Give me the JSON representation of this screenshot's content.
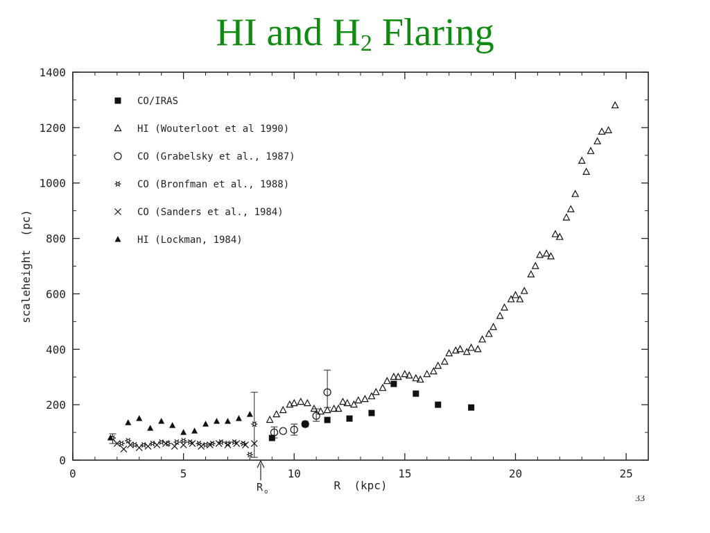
{
  "slide": {
    "title_main": "HI and H",
    "title_sub": "2",
    "title_rest": " Flaring",
    "page_number": "33"
  },
  "chart_data": {
    "type": "scatter",
    "xlabel": "R  (kpc)",
    "ylabel": "scaleheight  (pc)",
    "xlim": [
      0,
      26
    ],
    "ylim": [
      0,
      1400
    ],
    "xticks": [
      0,
      5,
      10,
      15,
      20,
      25
    ],
    "yticks": [
      0,
      200,
      400,
      600,
      800,
      1000,
      1200,
      1400
    ],
    "grid": false,
    "legend_position": "top-left",
    "annotation": {
      "label": "R",
      "subscript": "o",
      "x": 8.5
    },
    "series": [
      {
        "name": "CO/IRAS",
        "marker": "filled-square",
        "points": [
          [
            9.0,
            80
          ],
          [
            10.5,
            130
          ],
          [
            11.5,
            145
          ],
          [
            12.5,
            150
          ],
          [
            13.5,
            170
          ],
          [
            14.5,
            275
          ],
          [
            15.5,
            240
          ],
          [
            16.5,
            200
          ],
          [
            18.0,
            190
          ]
        ]
      },
      {
        "name": "HI (Wouterloot et al 1990)",
        "marker": "open-triangle",
        "points": [
          [
            8.9,
            145
          ],
          [
            9.2,
            165
          ],
          [
            9.5,
            180
          ],
          [
            9.8,
            200
          ],
          [
            10.0,
            205
          ],
          [
            10.3,
            210
          ],
          [
            10.6,
            205
          ],
          [
            10.9,
            185
          ],
          [
            11.2,
            175
          ],
          [
            11.5,
            180
          ],
          [
            11.8,
            185
          ],
          [
            12.0,
            185
          ],
          [
            12.2,
            210
          ],
          [
            12.4,
            205
          ],
          [
            12.7,
            200
          ],
          [
            12.9,
            215
          ],
          [
            13.2,
            220
          ],
          [
            13.5,
            230
          ],
          [
            13.7,
            245
          ],
          [
            14.0,
            260
          ],
          [
            14.2,
            285
          ],
          [
            14.5,
            300
          ],
          [
            14.7,
            300
          ],
          [
            15.0,
            310
          ],
          [
            15.2,
            305
          ],
          [
            15.5,
            295
          ],
          [
            15.7,
            290
          ],
          [
            16.0,
            310
          ],
          [
            16.3,
            320
          ],
          [
            16.5,
            340
          ],
          [
            16.8,
            355
          ],
          [
            17.0,
            385
          ],
          [
            17.3,
            395
          ],
          [
            17.5,
            400
          ],
          [
            17.8,
            390
          ],
          [
            18.0,
            405
          ],
          [
            18.3,
            400
          ],
          [
            18.5,
            435
          ],
          [
            18.8,
            455
          ],
          [
            19.0,
            480
          ],
          [
            19.3,
            520
          ],
          [
            19.5,
            550
          ],
          [
            19.8,
            580
          ],
          [
            20.0,
            595
          ],
          [
            20.2,
            580
          ],
          [
            20.4,
            610
          ],
          [
            20.7,
            670
          ],
          [
            20.9,
            700
          ],
          [
            21.1,
            740
          ],
          [
            21.4,
            745
          ],
          [
            21.6,
            735
          ],
          [
            21.8,
            815
          ],
          [
            22.0,
            805
          ],
          [
            22.3,
            875
          ],
          [
            22.5,
            905
          ],
          [
            22.7,
            960
          ],
          [
            23.0,
            1080
          ],
          [
            23.2,
            1040
          ],
          [
            23.4,
            1115
          ],
          [
            23.7,
            1150
          ],
          [
            23.9,
            1185
          ],
          [
            24.2,
            1190
          ],
          [
            24.5,
            1280
          ]
        ]
      },
      {
        "name": "CO (Grabelsky et al., 1987)",
        "marker": "open-circle",
        "points": [
          [
            9.1,
            100
          ],
          [
            9.5,
            105
          ],
          [
            10.0,
            110
          ],
          [
            10.5,
            130
          ],
          [
            11.0,
            160
          ],
          [
            11.5,
            245
          ]
        ]
      },
      {
        "name": "CO (Bronfman et al., 1988)",
        "marker": "star",
        "points": [
          [
            1.8,
            80
          ],
          [
            2.2,
            60
          ],
          [
            2.5,
            70
          ],
          [
            2.8,
            55
          ],
          [
            3.2,
            55
          ],
          [
            3.6,
            60
          ],
          [
            4.0,
            65
          ],
          [
            4.3,
            60
          ],
          [
            4.7,
            65
          ],
          [
            5.0,
            70
          ],
          [
            5.3,
            65
          ],
          [
            5.7,
            60
          ],
          [
            6.0,
            55
          ],
          [
            6.3,
            60
          ],
          [
            6.7,
            65
          ],
          [
            7.0,
            60
          ],
          [
            7.3,
            65
          ],
          [
            7.7,
            60
          ],
          [
            8.0,
            20
          ],
          [
            8.2,
            130
          ]
        ]
      },
      {
        "name": "CO (Sanders et al., 1984)",
        "marker": "cross",
        "points": [
          [
            2.0,
            60
          ],
          [
            2.3,
            40
          ],
          [
            2.6,
            55
          ],
          [
            3.0,
            45
          ],
          [
            3.4,
            50
          ],
          [
            3.8,
            55
          ],
          [
            4.2,
            60
          ],
          [
            4.6,
            50
          ],
          [
            5.0,
            55
          ],
          [
            5.4,
            60
          ],
          [
            5.8,
            50
          ],
          [
            6.2,
            55
          ],
          [
            6.6,
            60
          ],
          [
            7.0,
            55
          ],
          [
            7.4,
            60
          ],
          [
            7.8,
            55
          ],
          [
            8.2,
            60
          ]
        ]
      },
      {
        "name": "HI (Lockman, 1984)",
        "marker": "filled-triangle",
        "points": [
          [
            1.7,
            80
          ],
          [
            2.5,
            135
          ],
          [
            3.0,
            150
          ],
          [
            3.5,
            115
          ],
          [
            4.0,
            140
          ],
          [
            4.5,
            125
          ],
          [
            5.0,
            100
          ],
          [
            5.5,
            105
          ],
          [
            6.0,
            130
          ],
          [
            6.5,
            140
          ],
          [
            7.0,
            140
          ],
          [
            7.5,
            150
          ],
          [
            8.0,
            165
          ]
        ]
      }
    ],
    "error_bars": [
      {
        "x": 8.2,
        "y": 130,
        "low": 10,
        "high": 245
      },
      {
        "x": 11.0,
        "y": 165,
        "low": 140,
        "high": 185
      },
      {
        "x": 11.5,
        "y": 245,
        "low": 190,
        "high": 325
      },
      {
        "x": 9.1,
        "y": 100,
        "low": 80,
        "high": 120
      },
      {
        "x": 10.0,
        "y": 110,
        "low": 90,
        "high": 130
      },
      {
        "x": 1.8,
        "y": 80,
        "low": 60,
        "high": 95
      }
    ]
  }
}
